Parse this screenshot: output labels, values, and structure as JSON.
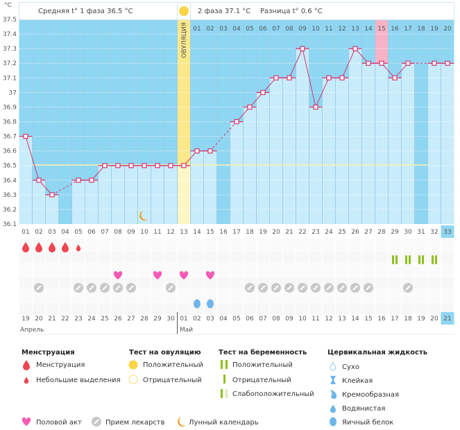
{
  "header": {
    "unit": "°C",
    "phase1": "Средняя t° 1 фаза 36.5 °C",
    "phase2": "2 фаза 37.1 °C",
    "diff": "Разница t° 0.6 °C",
    "ovulation_label": "ОВУЛЯЦИЯ"
  },
  "colors": {
    "above": "#8fd6f2",
    "below": "#c9ecfb",
    "line": "#d6336c",
    "ovulation": "#fde98a",
    "highlight": "#f7b3c6",
    "cover_line": "#f1eeb0"
  },
  "chart_data": {
    "type": "line",
    "ylabel": "°C",
    "ylim": [
      36.1,
      37.5
    ],
    "yticks": [
      "37.5",
      "37.4",
      "37.3",
      "37.2",
      "37.1",
      "37",
      "36.9",
      "36.8",
      "36.7",
      "36.6",
      "36.5",
      "36.4",
      "36.3",
      "36.2",
      "36.1"
    ],
    "cycle_days": [
      "01",
      "02",
      "03",
      "04",
      "05",
      "06",
      "07",
      "08",
      "09",
      "10",
      "11",
      "12",
      "13",
      "14",
      "15",
      "16",
      "17",
      "18",
      "19",
      "20",
      "21",
      "22",
      "23",
      "24",
      "25",
      "26",
      "27",
      "28",
      "29",
      "30",
      "31",
      "32",
      "33"
    ],
    "temperatures": [
      36.7,
      36.4,
      36.3,
      null,
      36.4,
      36.4,
      36.5,
      36.5,
      36.5,
      36.5,
      36.5,
      36.5,
      36.5,
      36.6,
      36.6,
      null,
      36.8,
      36.9,
      37.0,
      37.1,
      37.1,
      37.3,
      36.9,
      37.1,
      37.1,
      37.3,
      37.2,
      37.2,
      37.1,
      37.2,
      null,
      37.2,
      37.2
    ],
    "cover_line": 36.5,
    "ovulation_day": 13,
    "phase2_days": [
      "01",
      "02",
      "03",
      "04",
      "05",
      "06",
      "07",
      "08",
      "09",
      "10",
      "11",
      "12",
      "13",
      "14",
      "15",
      "16",
      "17",
      "18",
      "19",
      "20"
    ],
    "phase2_highlight": "15",
    "current_day": 33,
    "calendar_dates": [
      "19",
      "20",
      "21",
      "22",
      "23",
      "24",
      "25",
      "26",
      "27",
      "28",
      "29",
      "30",
      "01",
      "02",
      "03",
      "04",
      "05",
      "06",
      "07",
      "08",
      "09",
      "10",
      "11",
      "12",
      "13",
      "14",
      "15",
      "16",
      "17",
      "18",
      "19",
      "20",
      "21"
    ],
    "weekend_days": [
      6,
      7,
      13,
      14,
      20,
      21,
      27,
      28
    ],
    "months": [
      "Апрель",
      "Май"
    ],
    "moon_day": 10,
    "menstruation_days": [
      1,
      2,
      3,
      4
    ],
    "spotting_days": [
      5
    ],
    "pregnancy_positive_days": [
      29,
      30,
      31,
      32
    ],
    "intercourse_days": [
      8,
      11,
      13,
      15
    ],
    "medication_days": [
      2,
      5,
      6,
      7,
      8,
      9,
      12,
      18,
      19,
      20,
      21,
      22,
      23,
      24,
      25,
      26,
      27,
      30
    ],
    "cervical_eggwhite_days": [
      14,
      15
    ]
  },
  "legend": {
    "menstruation": {
      "title": "Менструация",
      "items": [
        "Менструация",
        "Небольшие выделения"
      ]
    },
    "ovulation_test": {
      "title": "Тест на овуляцию",
      "items": [
        "Положительный",
        "Отрицательный"
      ]
    },
    "pregnancy_test": {
      "title": "Тест на беременность",
      "items": [
        "Положительный",
        "Отрицательный",
        "Слабоположительный"
      ]
    },
    "cervical": {
      "title": "Цервикальная жидкость",
      "items": [
        "Сухо",
        "Клейкая",
        "Кремообразная",
        "Водянистая",
        "Яичный белок"
      ]
    },
    "other": [
      "Половой акт",
      "Прием лекарств",
      "Лунный календарь"
    ]
  }
}
